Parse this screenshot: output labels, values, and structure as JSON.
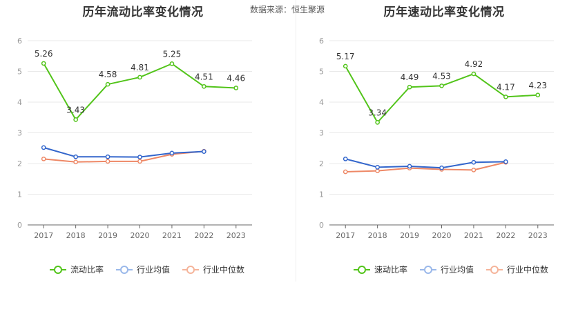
{
  "source_text": "数据来源：恒生聚源",
  "chart_data": [
    {
      "type": "line",
      "title": "历年流动比率变化情况",
      "categories": [
        "2017",
        "2018",
        "2019",
        "2020",
        "2021",
        "2022",
        "2023"
      ],
      "ylim": [
        0,
        6
      ],
      "yticks": [
        0,
        1,
        2,
        3,
        4,
        5,
        6
      ],
      "series": [
        {
          "name": "流动比率",
          "color": "#52c41a",
          "values": [
            5.26,
            3.43,
            4.58,
            4.81,
            5.25,
            4.51,
            4.46
          ],
          "labels": [
            "5.26",
            "3.43",
            "4.58",
            "4.81",
            "5.25",
            "4.51",
            "4.46"
          ]
        },
        {
          "name": "行业均值",
          "color": "#3366cc",
          "values": [
            2.52,
            2.22,
            2.22,
            2.21,
            2.34,
            2.39,
            null
          ]
        },
        {
          "name": "行业中位数",
          "color": "#ee8866",
          "values": [
            2.15,
            2.05,
            2.07,
            2.07,
            2.3,
            2.4,
            null
          ]
        }
      ]
    },
    {
      "type": "line",
      "title": "历年速动比率变化情况",
      "categories": [
        "2017",
        "2018",
        "2019",
        "2020",
        "2021",
        "2022",
        "2023"
      ],
      "ylim": [
        0,
        6
      ],
      "yticks": [
        0,
        1,
        2,
        3,
        4,
        5,
        6
      ],
      "series": [
        {
          "name": "速动比率",
          "color": "#52c41a",
          "values": [
            5.17,
            3.34,
            4.49,
            4.53,
            4.92,
            4.17,
            4.23
          ],
          "labels": [
            "5.17",
            "3.34",
            "4.49",
            "4.53",
            "4.92",
            "4.17",
            "4.23"
          ]
        },
        {
          "name": "行业均值",
          "color": "#3366cc",
          "values": [
            2.15,
            1.88,
            1.91,
            1.86,
            2.04,
            2.06,
            null
          ]
        },
        {
          "name": "行业中位数",
          "color": "#ee8866",
          "values": [
            1.73,
            1.76,
            1.85,
            1.81,
            1.79,
            2.04,
            null
          ]
        }
      ]
    }
  ]
}
